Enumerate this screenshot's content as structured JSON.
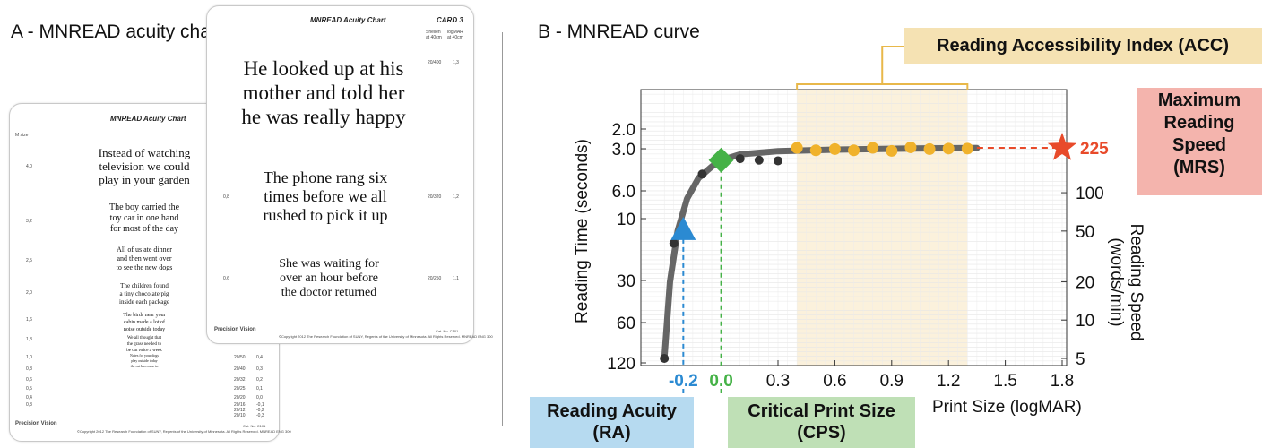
{
  "left": {
    "title": "A - MNREAD acuity chart",
    "card_front": {
      "header": "MNREAD Acuity Chart",
      "card_no": "CARD 3",
      "col1": "Snellen\nat 40cm",
      "col2": "logMAR\nat 40cm",
      "rows": [
        {
          "text": "He looked up at his\nmother and told her\nhe was really happy",
          "snellen": "20/400",
          "logmar": "1,3"
        },
        {
          "text": "The phone rang six\ntimes before we all\nrushed to pick it up",
          "snellen": "20/320",
          "logmar": "1,2",
          "m": "0,8"
        },
        {
          "text": "She was waiting for\nover an hour before\nthe doctor returned",
          "snellen": "20/250",
          "logmar": "1,1",
          "m": "0,6"
        }
      ],
      "logo": "Precision Vision",
      "footer": "©Copyright 2012 The Research Foundation of SUNY, Regents of the University of Minnesota. All Rights Reserved.    MNREAD ENG 300",
      "cat": "Cat. No. C101"
    },
    "card_back": {
      "header": "MNREAD Acuity Chart",
      "m_label": "M size",
      "sentences": [
        "Instead of watching\ntelevision we could\nplay in your garden",
        "The boy carried the\ntoy car in one hand\nfor most of the day",
        "All of us ate dinner\nand then went over\nto see the new dogs",
        "The children found\na tiny chocolate pig\ninside each package",
        "The birds near your\ncabin made a lot of\nnoise outside today",
        "We all thought that\nthe grass needed to\nbe cut twice a week",
        "Notes for your dogs\nplay outside today\nthe cat has come in"
      ],
      "m_values": [
        "4,0",
        "3,2",
        "2,5",
        "2,0",
        "1,6",
        "1,3",
        "1,0",
        "0,8",
        "0,6",
        "0,5",
        "0,4",
        "0,3"
      ],
      "snellen": [
        "20/50",
        "20/40",
        "20/32",
        "20/25",
        "20/20",
        "20/16",
        "20/12",
        "20/10"
      ],
      "logmar": [
        "0,4",
        "0,3",
        "0,2",
        "0,1",
        "0,0",
        "-0,1",
        "-0,2",
        "-0,3"
      ],
      "logo": "Precision Vision",
      "footer": "©Copyright 2012 The Research Foundation of SUNY, Regents of the University of Minnesota. All Rights Reserved.    MNREAD ENG 300",
      "cat": "Cat. No. C101"
    }
  },
  "right": {
    "title": "B - MNREAD curve",
    "acc_label": "Reading Accessibility Index (ACC)",
    "mrs_label": "Maximum\nReading\nSpeed\n(MRS)",
    "ra_label": "Reading Acuity\n(RA)",
    "cps_label": "Critical Print Size\n(CPS)",
    "mrs_value": "225",
    "ra_value": "-0.2",
    "cps_value": "0.0",
    "colors": {
      "acc_box": "#f5e2b3",
      "acc_band": "#fbf1dc",
      "acc_bracket": "#e8b84a",
      "mrs_box": "#f4b4ad",
      "ra_box": "#b6daf0",
      "cps_box": "#bfe0b6",
      "curve": "#666666",
      "dots": "#f0b22c",
      "ra_marker": "#2b8ad2",
      "cps_marker": "#45b247",
      "mrs_star": "#e84a2a",
      "ra_text": "#2b8ad2",
      "cps_text": "#45b247"
    }
  },
  "chart_data": {
    "type": "scatter",
    "xlabel": "Print Size (logMAR)",
    "ylabel_left": "Reading Time (seconds)",
    "ylabel_right": "Reading Speed\n(words/min)",
    "x_ticks": [
      "0.3",
      "0.6",
      "0.9",
      "1.2",
      "1.5",
      "1.8"
    ],
    "y_left_ticks": [
      "2.0",
      "3.0",
      "6.0",
      "10",
      "30",
      "60",
      "120"
    ],
    "y_right_ticks": [
      "100",
      "50",
      "20",
      "10",
      "5"
    ],
    "points_gray": [
      {
        "x": -0.3,
        "speed": 5
      },
      {
        "x": -0.25,
        "speed": 40
      },
      {
        "x": -0.1,
        "speed": 140
      },
      {
        "x": 0.1,
        "speed": 185
      },
      {
        "x": 0.2,
        "speed": 180
      },
      {
        "x": 0.3,
        "speed": 178
      }
    ],
    "points_plateau": [
      {
        "x": 0.4,
        "speed": 225
      },
      {
        "x": 0.5,
        "speed": 215
      },
      {
        "x": 0.6,
        "speed": 220
      },
      {
        "x": 0.7,
        "speed": 215
      },
      {
        "x": 0.8,
        "speed": 225
      },
      {
        "x": 0.9,
        "speed": 213
      },
      {
        "x": 1.0,
        "speed": 227
      },
      {
        "x": 1.1,
        "speed": 220
      },
      {
        "x": 1.2,
        "speed": 222
      },
      {
        "x": 1.3,
        "speed": 222
      }
    ],
    "ra": {
      "x": -0.2,
      "speed": 50
    },
    "cps": {
      "x": 0.0,
      "speed": 180
    },
    "mrs": {
      "x": 1.8,
      "speed": 225
    },
    "acc_range": [
      0.4,
      1.3
    ],
    "xlim": [
      -0.3,
      1.8
    ]
  }
}
